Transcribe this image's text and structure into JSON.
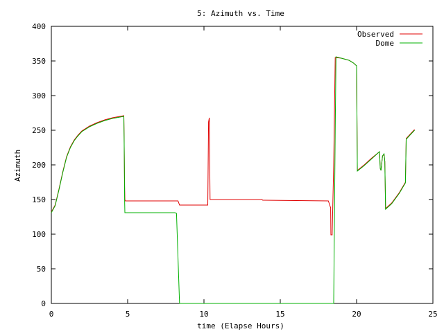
{
  "chart_data": {
    "type": "line",
    "title": "5: Azimuth vs. Time",
    "xlabel": "time (Elapse Hours)",
    "ylabel": "Azimuth",
    "xlim": [
      0,
      25
    ],
    "ylim": [
      0,
      400
    ],
    "xticks": [
      0,
      5,
      10,
      15,
      20,
      25
    ],
    "yticks": [
      0,
      50,
      100,
      150,
      200,
      250,
      300,
      350,
      400
    ],
    "grid": false,
    "legend_position": "top-right",
    "series": [
      {
        "name": "Observed",
        "color": "#e00000",
        "points": [
          [
            0,
            132
          ],
          [
            0.25,
            142
          ],
          [
            0.5,
            165
          ],
          [
            0.75,
            190
          ],
          [
            1.0,
            212
          ],
          [
            1.25,
            226
          ],
          [
            1.5,
            236
          ],
          [
            1.75,
            243
          ],
          [
            2.0,
            249
          ],
          [
            2.5,
            256
          ],
          [
            3.0,
            261
          ],
          [
            3.5,
            265
          ],
          [
            4.0,
            268
          ],
          [
            4.5,
            270
          ],
          [
            4.75,
            271
          ],
          [
            4.77,
            240
          ],
          [
            4.8,
            170
          ],
          [
            4.82,
            150
          ],
          [
            4.85,
            148
          ],
          [
            8.3,
            148
          ],
          [
            8.4,
            142
          ],
          [
            10.25,
            142
          ],
          [
            10.3,
            262
          ],
          [
            10.35,
            268
          ],
          [
            10.4,
            150
          ],
          [
            13.8,
            150
          ],
          [
            13.85,
            149
          ],
          [
            18.15,
            148
          ],
          [
            18.3,
            138
          ],
          [
            18.32,
            99
          ],
          [
            18.4,
            99
          ],
          [
            18.5,
            200
          ],
          [
            18.6,
            355
          ],
          [
            19.0,
            354
          ],
          [
            19.5,
            351
          ],
          [
            19.8,
            347
          ],
          [
            20.0,
            343
          ],
          [
            20.05,
            192
          ],
          [
            20.5,
            200
          ],
          [
            21.0,
            210
          ],
          [
            21.5,
            219
          ],
          [
            21.55,
            195
          ],
          [
            21.6,
            192
          ],
          [
            21.7,
            213
          ],
          [
            21.8,
            215
          ],
          [
            21.85,
            205
          ],
          [
            21.9,
            137
          ],
          [
            22.3,
            145
          ],
          [
            22.8,
            160
          ],
          [
            23.2,
            175
          ],
          [
            23.25,
            238
          ],
          [
            23.5,
            244
          ],
          [
            23.8,
            251
          ]
        ]
      },
      {
        "name": "Dome",
        "color": "#00b000",
        "points": [
          [
            0,
            131
          ],
          [
            0.25,
            141
          ],
          [
            0.5,
            164
          ],
          [
            0.75,
            189
          ],
          [
            1.0,
            211
          ],
          [
            1.25,
            225
          ],
          [
            1.5,
            235
          ],
          [
            1.75,
            242
          ],
          [
            2.0,
            248
          ],
          [
            2.5,
            255
          ],
          [
            3.0,
            260
          ],
          [
            3.5,
            264
          ],
          [
            4.0,
            267
          ],
          [
            4.5,
            269
          ],
          [
            4.75,
            270
          ],
          [
            4.77,
            240
          ],
          [
            4.8,
            150
          ],
          [
            4.82,
            131
          ],
          [
            8.1,
            131
          ],
          [
            8.2,
            130
          ],
          [
            8.4,
            0
          ],
          [
            18.5,
            0
          ],
          [
            18.6,
            250
          ],
          [
            18.65,
            356
          ],
          [
            19.0,
            354
          ],
          [
            19.5,
            351
          ],
          [
            19.8,
            347
          ],
          [
            20.0,
            343
          ],
          [
            20.05,
            191
          ],
          [
            20.5,
            199
          ],
          [
            21.0,
            209
          ],
          [
            21.5,
            219
          ],
          [
            21.55,
            195
          ],
          [
            21.6,
            192
          ],
          [
            21.7,
            213
          ],
          [
            21.8,
            216
          ],
          [
            21.85,
            205
          ],
          [
            21.9,
            136
          ],
          [
            22.3,
            144
          ],
          [
            22.8,
            159
          ],
          [
            23.2,
            174
          ],
          [
            23.25,
            237
          ],
          [
            23.5,
            243
          ],
          [
            23.8,
            250
          ]
        ]
      }
    ]
  }
}
